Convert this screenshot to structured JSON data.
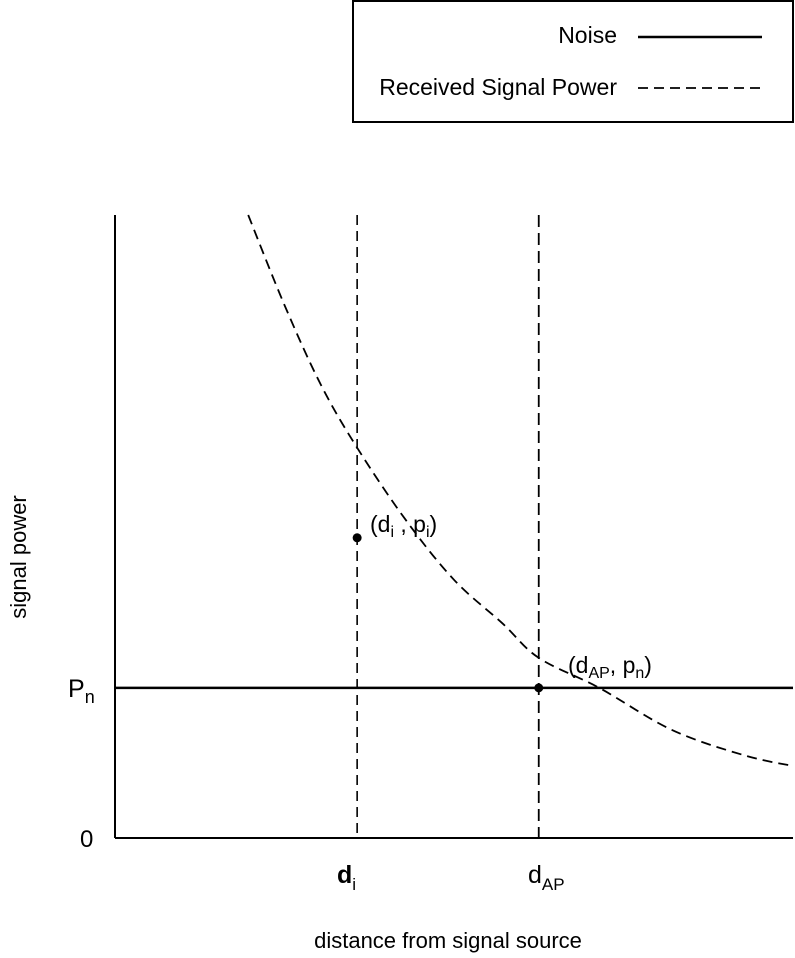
{
  "chart_data": {
    "type": "line",
    "xlabel": "distance from signal source",
    "ylabel": "signal power",
    "legend": {
      "placement": "top-right",
      "entries": [
        {
          "label": "Noise",
          "style": "solid"
        },
        {
          "label": "Received Signal Power",
          "style": "dashed"
        }
      ]
    },
    "x_ticks": [
      {
        "main": "d",
        "sub": "i"
      },
      {
        "main": "d",
        "sub": "AP"
      }
    ],
    "y_ticks": [
      {
        "main": "0",
        "sub": ""
      },
      {
        "main": "P",
        "sub": "n"
      }
    ],
    "annotations": [
      {
        "main": "(d",
        "sub1": "i",
        "mid": " , p",
        "sub2": "i",
        "end": ")"
      },
      {
        "main": "(d",
        "sub1": "AP",
        "mid": ", p",
        "sub2": "n",
        "end": ")"
      }
    ],
    "series": [
      {
        "style": "dashed",
        "x": [
          0.55,
          0.7,
          0.85,
          1.0,
          1.2,
          1.4,
          1.6,
          1.75,
          2.0,
          2.3,
          2.6,
          2.8
        ],
        "y": [
          4.15,
          3.55,
          3.02,
          2.6,
          2.12,
          1.72,
          1.43,
          1.2,
          1.0,
          0.72,
          0.55,
          0.48
        ]
      },
      {
        "style": "solid",
        "x": [
          0.0,
          2.8
        ],
        "y": [
          1.0,
          1.0
        ]
      }
    ],
    "reference_x": [
      1.0,
      1.75
    ],
    "marked_points": [
      {
        "x": 1.0,
        "y": 2.0
      },
      {
        "x": 1.75,
        "y": 1.0
      }
    ],
    "xlim": [
      0,
      2.8
    ],
    "ylim": [
      0,
      4.15
    ],
    "grid": false
  }
}
